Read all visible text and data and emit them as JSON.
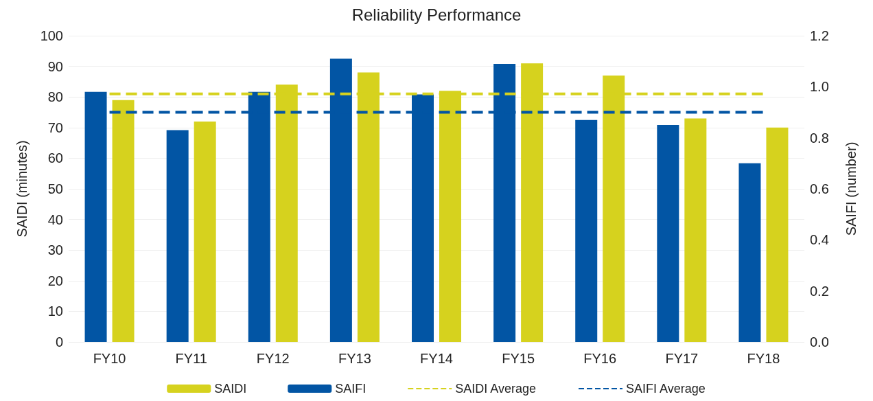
{
  "chart_data": {
    "type": "bar",
    "title": "Reliability Performance",
    "ylabel": "SAIDI (minutes)",
    "y2label": "SAIFI (number)",
    "categories": [
      "FY10",
      "FY11",
      "FY12",
      "FY13",
      "FY14",
      "FY15",
      "FY16",
      "FY17",
      "FY18"
    ],
    "series": [
      {
        "name": "SAIDI",
        "color": "#d6d21e",
        "values": [
          79,
          72,
          84,
          88,
          82,
          91,
          87,
          73,
          70
        ]
      },
      {
        "name": "SAIFI",
        "color": "#0255a4",
        "axis": "y2",
        "values": [
          0.98,
          0.83,
          0.98,
          1.11,
          0.97,
          1.09,
          0.87,
          0.85,
          0.7
        ]
      },
      {
        "name": "SAIDI Average",
        "type": "line",
        "color": "#d6d21e",
        "line_style": "dashed",
        "marker": "none",
        "values": [
          81,
          81,
          81,
          81,
          81,
          81,
          81,
          81,
          81
        ]
      },
      {
        "name": "SAIFI Average",
        "type": "line",
        "color": "#0255a4",
        "axis": "y2",
        "line_style": "dashed",
        "marker": "none",
        "values": [
          0.9,
          0.9,
          0.9,
          0.9,
          0.9,
          0.9,
          0.9,
          0.9,
          0.9
        ]
      }
    ],
    "ylim": [
      0,
      100
    ],
    "yticks": [
      0,
      10,
      20,
      30,
      40,
      50,
      60,
      70,
      80,
      90,
      100
    ],
    "y2lim": [
      0,
      1.2
    ],
    "y2ticks": [
      {
        "value": 0,
        "label": "0.0"
      },
      0.2,
      0.4,
      0.6,
      0.8,
      {
        "value": 1,
        "label": "1.0"
      },
      1.2
    ],
    "grid": "y",
    "legend": "bottom"
  }
}
